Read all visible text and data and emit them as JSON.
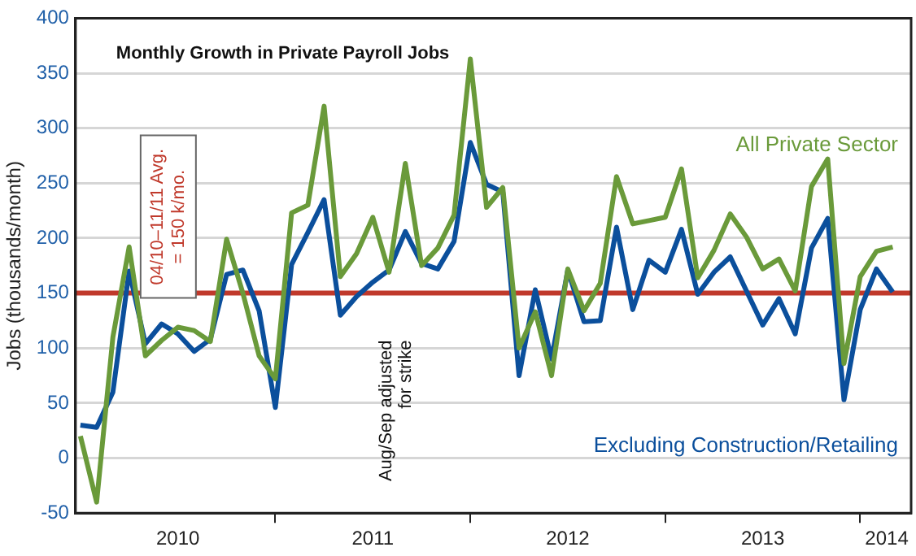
{
  "chart_data": {
    "type": "line",
    "title": "Monthly Growth in Private Payroll Jobs",
    "ylabel": "Jobs (thousands/month)",
    "x": [
      "2010-01",
      "2010-02",
      "2010-03",
      "2010-04",
      "2010-05",
      "2010-06",
      "2010-07",
      "2010-08",
      "2010-09",
      "2010-10",
      "2010-11",
      "2010-12",
      "2011-01",
      "2011-02",
      "2011-03",
      "2011-04",
      "2011-05",
      "2011-06",
      "2011-07",
      "2011-08",
      "2011-09",
      "2011-10",
      "2011-11",
      "2011-12",
      "2012-01",
      "2012-02",
      "2012-03",
      "2012-04",
      "2012-05",
      "2012-06",
      "2012-07",
      "2012-08",
      "2012-09",
      "2012-10",
      "2012-11",
      "2012-12",
      "2013-01",
      "2013-02",
      "2013-03",
      "2013-04",
      "2013-05",
      "2013-06",
      "2013-07",
      "2013-08",
      "2013-09",
      "2013-10",
      "2013-11",
      "2013-12",
      "2014-01",
      "2014-02",
      "2014-03"
    ],
    "series": [
      {
        "name": "All Private Sector",
        "color": "#6a9a3a",
        "values": [
          20,
          -40,
          110,
          192,
          93,
          107,
          119,
          116,
          106,
          199,
          150,
          93,
          72,
          223,
          230,
          320,
          165,
          186,
          219,
          169,
          268,
          175,
          191,
          221,
          363,
          228,
          246,
          100,
          133,
          75,
          172,
          134,
          159,
          256,
          213,
          216,
          219,
          263,
          164,
          189,
          222,
          201,
          172,
          181,
          152,
          247,
          272,
          86,
          165,
          188,
          192
        ]
      },
      {
        "name": "Excluding Construction/Retailing",
        "color": "#0b4f9c",
        "values": [
          30,
          28,
          60,
          170,
          104,
          122,
          113,
          97,
          108,
          167,
          171,
          134,
          46,
          176,
          205,
          235,
          130,
          147,
          160,
          171,
          206,
          177,
          172,
          197,
          287,
          249,
          242,
          75,
          153,
          90,
          171,
          124,
          125,
          210,
          135,
          180,
          169,
          208,
          149,
          169,
          183,
          152,
          121,
          145,
          113,
          191,
          218,
          53,
          135,
          172,
          151
        ]
      }
    ],
    "xlim": [
      "2009-12-22",
      "2014-04-05"
    ],
    "xticks": [
      {
        "value": "2010-07",
        "label": "2010"
      },
      {
        "value": "2011-01",
        "label": null
      },
      {
        "value": "2011-07",
        "label": "2011"
      },
      {
        "value": "2012-01",
        "label": null
      },
      {
        "value": "2012-07",
        "label": "2012"
      },
      {
        "value": "2013-01",
        "label": null
      },
      {
        "value": "2013-07",
        "label": "2013"
      },
      {
        "value": "2014-01",
        "label": null
      },
      {
        "value": "2014-02-20",
        "label": "2014"
      }
    ],
    "ylim": [
      -50,
      400
    ],
    "yticks": [
      -50,
      0,
      50,
      100,
      150,
      200,
      250,
      300,
      350,
      400
    ],
    "grid": "y",
    "legend": false,
    "marker": "none",
    "line_style": "solid",
    "ref_lines": [
      {
        "axis": "y",
        "value": 150,
        "label": "04/10–11/11 Avg. = 150 k/mo.",
        "color": "#c0392b"
      }
    ],
    "annotations": [
      "Aug/Sep adjusted for strike"
    ]
  }
}
